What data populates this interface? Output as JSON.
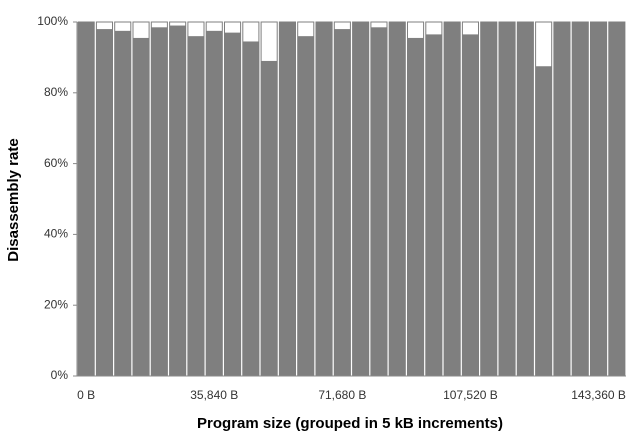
{
  "chart_data": {
    "type": "bar",
    "x_label": "Program size (grouped in 5 kB increments)",
    "y_label": "Disassembly rate",
    "categories": [
      "0 B",
      null,
      null,
      null,
      null,
      null,
      null,
      "35,840 B",
      null,
      null,
      null,
      null,
      null,
      null,
      "71,680 B",
      null,
      null,
      null,
      null,
      null,
      null,
      "107,520 B",
      null,
      null,
      null,
      null,
      null,
      null,
      "143,360 B",
      null
    ],
    "values": [
      100,
      98,
      97.5,
      95.5,
      98.5,
      99,
      96,
      97.5,
      97,
      94.5,
      89,
      100,
      96,
      100,
      98,
      100,
      98.5,
      100,
      95.5,
      96.5,
      100,
      96.5,
      100,
      100,
      100,
      87.5,
      100,
      100,
      100,
      100
    ],
    "color": "#7f7f7f",
    "ylim": [
      0,
      100
    ],
    "yticks": [
      {
        "value": 0,
        "label": "0%"
      },
      {
        "value": 20,
        "label": "20%"
      },
      {
        "value": 40,
        "label": "40%"
      },
      {
        "value": 60,
        "label": "60%"
      },
      {
        "value": 80,
        "label": "80%"
      },
      {
        "value": 100,
        "label": "100%"
      }
    ]
  }
}
